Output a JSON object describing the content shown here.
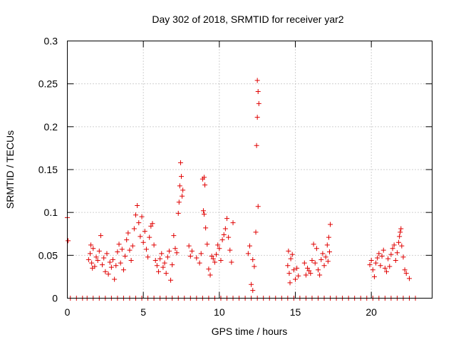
{
  "chart_data": {
    "type": "scatter",
    "title": "Day 302 of 2018, SRMTID for receiver yar2",
    "xlabel": "GPS time / hours",
    "ylabel": "SRMTID / TECUs",
    "xlim": [
      0,
      24
    ],
    "ylim": [
      0,
      0.3
    ],
    "xticks": [
      "0",
      "5",
      "10",
      "15",
      "20"
    ],
    "yticks": [
      "0",
      "0.05",
      "0.1",
      "0.15",
      "0.2",
      "0.25",
      "0.3"
    ],
    "grid": true,
    "marker": "+",
    "color": "#e00000",
    "series": [
      {
        "name": "SRMTID",
        "points": [
          [
            0.0,
            0.094
          ],
          [
            0.05,
            0.067
          ],
          [
            1.4,
            0.045
          ],
          [
            1.5,
            0.052
          ],
          [
            1.6,
            0.041
          ],
          [
            1.7,
            0.058
          ],
          [
            1.8,
            0.037
          ],
          [
            1.9,
            0.048
          ],
          [
            1.55,
            0.062
          ],
          [
            1.65,
            0.035
          ],
          [
            2.0,
            0.044
          ],
          [
            2.1,
            0.055
          ],
          [
            2.2,
            0.073
          ],
          [
            2.3,
            0.039
          ],
          [
            2.4,
            0.047
          ],
          [
            2.5,
            0.031
          ],
          [
            2.6,
            0.052
          ],
          [
            2.7,
            0.028
          ],
          [
            2.8,
            0.042
          ],
          [
            2.9,
            0.036
          ],
          [
            3.0,
            0.045
          ],
          [
            3.1,
            0.022
          ],
          [
            3.2,
            0.038
          ],
          [
            3.3,
            0.054
          ],
          [
            3.4,
            0.063
          ],
          [
            3.5,
            0.041
          ],
          [
            3.6,
            0.057
          ],
          [
            3.7,
            0.033
          ],
          [
            3.8,
            0.049
          ],
          [
            3.9,
            0.068
          ],
          [
            4.0,
            0.076
          ],
          [
            4.1,
            0.056
          ],
          [
            4.2,
            0.044
          ],
          [
            4.3,
            0.061
          ],
          [
            4.4,
            0.081
          ],
          [
            4.5,
            0.097
          ],
          [
            4.6,
            0.108
          ],
          [
            4.7,
            0.088
          ],
          [
            4.8,
            0.072
          ],
          [
            4.9,
            0.095
          ],
          [
            5.0,
            0.065
          ],
          [
            5.1,
            0.078
          ],
          [
            5.2,
            0.057
          ],
          [
            5.3,
            0.048
          ],
          [
            5.4,
            0.071
          ],
          [
            5.5,
            0.084
          ],
          [
            5.6,
            0.087
          ],
          [
            5.7,
            0.062
          ],
          [
            5.8,
            0.044
          ],
          [
            5.9,
            0.038
          ],
          [
            6.0,
            0.031
          ],
          [
            6.1,
            0.046
          ],
          [
            6.2,
            0.052
          ],
          [
            6.3,
            0.036
          ],
          [
            6.4,
            0.041
          ],
          [
            6.5,
            0.029
          ],
          [
            6.6,
            0.048
          ],
          [
            6.7,
            0.055
          ],
          [
            6.8,
            0.021
          ],
          [
            6.9,
            0.039
          ],
          [
            7.0,
            0.073
          ],
          [
            7.1,
            0.058
          ],
          [
            7.2,
            0.053
          ],
          [
            7.3,
            0.099
          ],
          [
            7.35,
            0.112
          ],
          [
            7.4,
            0.131
          ],
          [
            7.45,
            0.158
          ],
          [
            7.5,
            0.142
          ],
          [
            7.55,
            0.119
          ],
          [
            7.6,
            0.126
          ],
          [
            8.0,
            0.061
          ],
          [
            8.1,
            0.049
          ],
          [
            8.2,
            0.055
          ],
          [
            8.5,
            0.047
          ],
          [
            8.7,
            0.041
          ],
          [
            8.8,
            0.052
          ],
          [
            8.9,
            0.139
          ],
          [
            9.0,
            0.141
          ],
          [
            9.05,
            0.132
          ],
          [
            8.95,
            0.102
          ],
          [
            9.0,
            0.098
          ],
          [
            9.1,
            0.082
          ],
          [
            9.2,
            0.063
          ],
          [
            9.3,
            0.034
          ],
          [
            9.4,
            0.027
          ],
          [
            9.5,
            0.049
          ],
          [
            9.6,
            0.046
          ],
          [
            9.7,
            0.042
          ],
          [
            9.8,
            0.051
          ],
          [
            9.9,
            0.062
          ],
          [
            10.0,
            0.058
          ],
          [
            10.1,
            0.044
          ],
          [
            10.2,
            0.068
          ],
          [
            10.3,
            0.074
          ],
          [
            10.4,
            0.081
          ],
          [
            10.5,
            0.093
          ],
          [
            10.6,
            0.071
          ],
          [
            10.7,
            0.056
          ],
          [
            10.8,
            0.042
          ],
          [
            10.9,
            0.088
          ],
          [
            11.9,
            0.052
          ],
          [
            12.0,
            0.061
          ],
          [
            12.1,
            0.016
          ],
          [
            12.2,
            0.009
          ],
          [
            12.5,
            0.254
          ],
          [
            12.55,
            0.241
          ],
          [
            12.6,
            0.227
          ],
          [
            12.5,
            0.211
          ],
          [
            12.45,
            0.178
          ],
          [
            12.55,
            0.107
          ],
          [
            12.4,
            0.077
          ],
          [
            12.3,
            0.037
          ],
          [
            12.2,
            0.045
          ],
          [
            14.5,
            0.038
          ],
          [
            14.6,
            0.029
          ],
          [
            14.7,
            0.046
          ],
          [
            14.8,
            0.051
          ],
          [
            14.9,
            0.033
          ],
          [
            15.0,
            0.022
          ],
          [
            15.1,
            0.035
          ],
          [
            15.2,
            0.026
          ],
          [
            14.55,
            0.055
          ],
          [
            14.65,
            0.018
          ],
          [
            15.6,
            0.041
          ],
          [
            15.7,
            0.027
          ],
          [
            15.8,
            0.035
          ],
          [
            15.9,
            0.032
          ],
          [
            16.0,
            0.029
          ],
          [
            16.1,
            0.044
          ],
          [
            16.2,
            0.063
          ],
          [
            16.3,
            0.041
          ],
          [
            16.4,
            0.058
          ],
          [
            16.5,
            0.033
          ],
          [
            16.6,
            0.027
          ],
          [
            16.7,
            0.045
          ],
          [
            16.8,
            0.052
          ],
          [
            16.9,
            0.038
          ],
          [
            17.0,
            0.048
          ],
          [
            17.1,
            0.062
          ],
          [
            17.2,
            0.071
          ],
          [
            17.3,
            0.086
          ],
          [
            17.25,
            0.054
          ],
          [
            17.15,
            0.043
          ],
          [
            19.9,
            0.039
          ],
          [
            20.0,
            0.044
          ],
          [
            20.1,
            0.033
          ],
          [
            20.2,
            0.025
          ],
          [
            20.3,
            0.041
          ],
          [
            20.4,
            0.047
          ],
          [
            20.5,
            0.052
          ],
          [
            20.6,
            0.038
          ],
          [
            20.7,
            0.049
          ],
          [
            20.8,
            0.056
          ],
          [
            20.9,
            0.035
          ],
          [
            21.0,
            0.031
          ],
          [
            21.1,
            0.046
          ],
          [
            21.2,
            0.037
          ],
          [
            21.3,
            0.051
          ],
          [
            21.4,
            0.058
          ],
          [
            21.5,
            0.062
          ],
          [
            21.6,
            0.044
          ],
          [
            21.7,
            0.053
          ],
          [
            21.8,
            0.065
          ],
          [
            21.85,
            0.072
          ],
          [
            21.9,
            0.077
          ],
          [
            21.95,
            0.081
          ],
          [
            22.0,
            0.061
          ],
          [
            22.1,
            0.048
          ],
          [
            22.2,
            0.033
          ],
          [
            22.3,
            0.029
          ],
          [
            22.5,
            0.023
          ],
          [
            0.2,
            0.0
          ],
          [
            0.6,
            0.0
          ],
          [
            1.0,
            0.0
          ],
          [
            1.3,
            0.0
          ],
          [
            1.7,
            0.0
          ],
          [
            2.1,
            0.0
          ],
          [
            2.5,
            0.0
          ],
          [
            2.9,
            0.0
          ],
          [
            3.3,
            0.0
          ],
          [
            3.7,
            0.0
          ],
          [
            4.1,
            0.0
          ],
          [
            4.5,
            0.0
          ],
          [
            4.9,
            0.0
          ],
          [
            5.3,
            0.0
          ],
          [
            5.7,
            0.0
          ],
          [
            6.1,
            0.0
          ],
          [
            6.5,
            0.0
          ],
          [
            6.9,
            0.0
          ],
          [
            7.3,
            0.0
          ],
          [
            7.7,
            0.0
          ],
          [
            8.1,
            0.0
          ],
          [
            8.5,
            0.0
          ],
          [
            8.9,
            0.0
          ],
          [
            9.3,
            0.0
          ],
          [
            9.7,
            0.0
          ],
          [
            10.1,
            0.0
          ],
          [
            10.5,
            0.0
          ],
          [
            10.9,
            0.0
          ],
          [
            11.3,
            0.0
          ],
          [
            11.7,
            0.0
          ],
          [
            12.1,
            0.0
          ],
          [
            12.5,
            0.0
          ],
          [
            12.9,
            0.0
          ],
          [
            13.3,
            0.0
          ],
          [
            13.7,
            0.0
          ],
          [
            14.1,
            0.0
          ],
          [
            14.5,
            0.0
          ],
          [
            14.9,
            0.0
          ],
          [
            15.3,
            0.0
          ],
          [
            15.7,
            0.0
          ],
          [
            16.1,
            0.0
          ],
          [
            16.5,
            0.0
          ],
          [
            16.9,
            0.0
          ],
          [
            17.3,
            0.0
          ],
          [
            17.7,
            0.0
          ],
          [
            18.1,
            0.0
          ],
          [
            18.5,
            0.0
          ],
          [
            18.9,
            0.0
          ],
          [
            19.3,
            0.0
          ],
          [
            19.7,
            0.0
          ],
          [
            20.1,
            0.0
          ],
          [
            20.5,
            0.0
          ],
          [
            20.9,
            0.0
          ],
          [
            21.3,
            0.0
          ],
          [
            21.7,
            0.0
          ],
          [
            22.1,
            0.0
          ],
          [
            22.5,
            0.0
          ],
          [
            22.9,
            0.0
          ]
        ]
      }
    ]
  }
}
